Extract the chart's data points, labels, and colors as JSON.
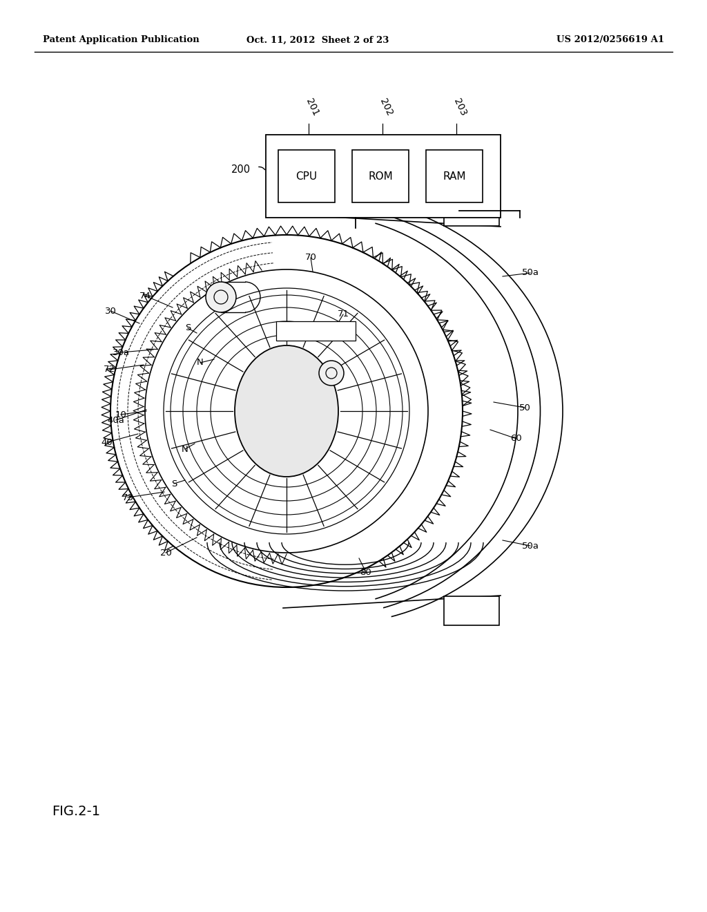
{
  "background_color": "#ffffff",
  "header_left": "Patent Application Publication",
  "header_center": "Oct. 11, 2012  Sheet 2 of 23",
  "header_right": "US 2012/0256619 A1",
  "figure_label": "FIG.2-1",
  "cpu_label": "CPU",
  "rom_label": "ROM",
  "ram_label": "RAM",
  "label_200": "200",
  "label_201": "201",
  "label_202": "202",
  "label_203": "203",
  "label_10": "10",
  "label_20": "20",
  "label_30": "30",
  "label_30a": "30a",
  "label_40": "40",
  "label_40a": "40a",
  "label_50": "50",
  "label_50a": "50a",
  "label_60": "60",
  "label_70": "70",
  "label_71": "71",
  "label_72": "72",
  "label_73": "73",
  "label_74": "74",
  "label_80": "80",
  "label_N": "N",
  "label_S": "S"
}
